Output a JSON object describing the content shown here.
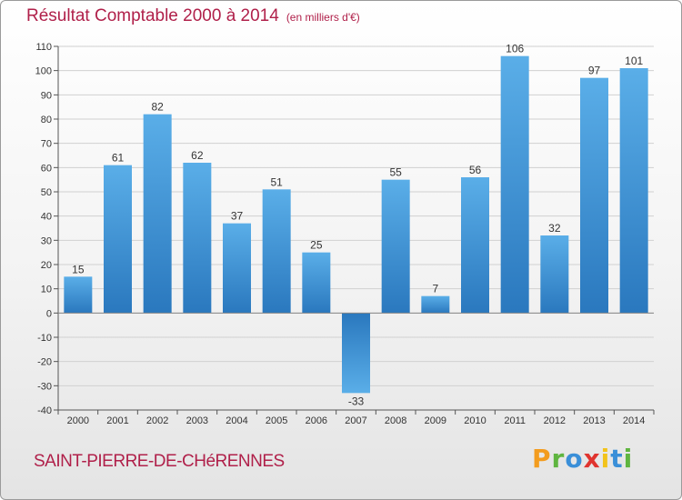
{
  "title": "Résultat Comptable 2000 à 2014",
  "subtitle": "(en milliers d'€)",
  "commune": "SAINT-PIERRE-DE-CHéRENNES",
  "logo": {
    "text": "Proxiti",
    "letters": [
      {
        "char": "P",
        "color": "#f39c1e"
      },
      {
        "char": "r",
        "color": "#5fb540"
      },
      {
        "char": "o",
        "color": "#3a8fd8"
      },
      {
        "char": "x",
        "color": "#e0342f"
      },
      {
        "char": "i",
        "color": "#f2c31b"
      },
      {
        "char": "t",
        "color": "#3a8fd8"
      },
      {
        "char": "i",
        "color": "#5fb540"
      }
    ]
  },
  "colors": {
    "title": "#b0204a",
    "bar_light": "#5aaee8",
    "bar_dark": "#2a78be",
    "grid": "#d0d0d0"
  },
  "chart_data": {
    "type": "bar",
    "title": "Résultat Comptable 2000 à 2014",
    "subtitle": "(en milliers d'€)",
    "xlabel": "",
    "ylabel": "",
    "categories": [
      "2000",
      "2001",
      "2002",
      "2003",
      "2004",
      "2005",
      "2006",
      "2007",
      "2008",
      "2009",
      "2010",
      "2011",
      "2012",
      "2013",
      "2014"
    ],
    "values": [
      15,
      61,
      82,
      62,
      37,
      51,
      25,
      -33,
      55,
      7,
      56,
      106,
      32,
      97,
      101
    ],
    "ylim": [
      -40,
      110
    ],
    "yticks": [
      -40,
      -30,
      -20,
      -10,
      0,
      10,
      20,
      30,
      40,
      50,
      60,
      70,
      80,
      90,
      100,
      110
    ],
    "grid": true,
    "legend": "none"
  }
}
